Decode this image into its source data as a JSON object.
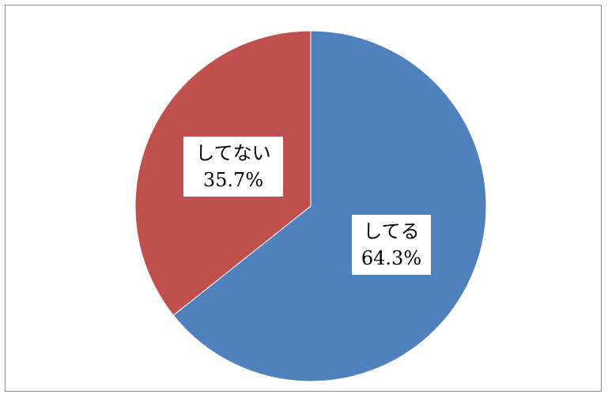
{
  "chart_data": {
    "type": "pie",
    "categories": [
      "してる",
      "してない"
    ],
    "values": [
      64.3,
      35.7
    ],
    "labels": [
      {
        "name": "してる",
        "percent": "64.3%"
      },
      {
        "name": "してない",
        "percent": "35.7%"
      }
    ],
    "colors": [
      "#4f81bd",
      "#c0504d"
    ],
    "start_angle": "12 o'clock",
    "direction": "clockwise",
    "legend": "none",
    "title": ""
  }
}
